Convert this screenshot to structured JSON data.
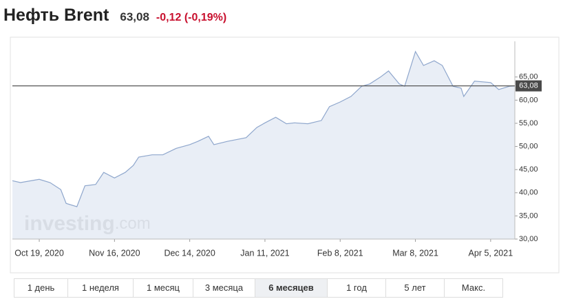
{
  "header": {
    "title": "Нефть Brent",
    "price": "63,08",
    "change": "-0,12 (-0,19%)"
  },
  "chart_data": {
    "type": "area",
    "color": "#8ea6cc",
    "fill": "#e5ebf4",
    "watermark": [
      "investing",
      ".com"
    ],
    "x": [
      "2020-10-09",
      "2020-10-12",
      "2020-10-19",
      "2020-10-23",
      "2020-10-27",
      "2020-10-29",
      "2020-11-02",
      "2020-11-05",
      "2020-11-09",
      "2020-11-12",
      "2020-11-16",
      "2020-11-20",
      "2020-11-23",
      "2020-11-25",
      "2020-11-30",
      "2020-12-04",
      "2020-12-09",
      "2020-12-14",
      "2020-12-17",
      "2020-12-21",
      "2020-12-23",
      "2020-12-28",
      "2021-01-04",
      "2021-01-08",
      "2021-01-11",
      "2021-01-15",
      "2021-01-19",
      "2021-01-22",
      "2021-01-27",
      "2021-02-01",
      "2021-02-04",
      "2021-02-08",
      "2021-02-12",
      "2021-02-16",
      "2021-02-19",
      "2021-02-23",
      "2021-02-26",
      "2021-03-02",
      "2021-03-04",
      "2021-03-08",
      "2021-03-11",
      "2021-03-15",
      "2021-03-18",
      "2021-03-22",
      "2021-03-25",
      "2021-03-26",
      "2021-03-30",
      "2021-04-05",
      "2021-04-08",
      "2021-04-12",
      "2021-04-14"
    ],
    "series": [
      {
        "values": [
          42.6,
          42.2,
          42.9,
          42.2,
          40.7,
          37.7,
          37.0,
          41.5,
          41.8,
          44.4,
          43.2,
          44.4,
          45.9,
          47.7,
          48.2,
          48.2,
          49.6,
          50.4,
          51.1,
          52.2,
          50.4,
          51.1,
          51.9,
          54.1,
          55.1,
          56.3,
          54.9,
          55.1,
          54.9,
          55.6,
          58.6,
          59.6,
          60.8,
          63.0,
          63.5,
          65.0,
          66.3,
          63.5,
          63.0,
          70.5,
          67.5,
          68.5,
          67.5,
          63.0,
          62.6,
          60.8,
          64.1,
          63.8,
          62.3,
          63.0,
          63.08
        ]
      }
    ],
    "current_value": {
      "value": 63.08,
      "label": "63,08"
    },
    "xlim": [
      "2020-10-09",
      "2021-04-14"
    ],
    "xticks": [
      {
        "value": "2020-10-19",
        "label": "Oct 19, 2020"
      },
      {
        "value": "2020-11-16",
        "label": "Nov 16, 2020"
      },
      {
        "value": "2020-12-14",
        "label": "Dec 14, 2020"
      },
      {
        "value": "2021-01-11",
        "label": "Jan 11, 2021"
      },
      {
        "value": "2021-02-08",
        "label": "Feb 8, 2021"
      },
      {
        "value": "2021-03-08",
        "label": "Mar 8, 2021"
      },
      {
        "value": "2021-04-05",
        "label": "Apr 5, 2021"
      }
    ],
    "ylim": [
      30,
      72.7
    ],
    "yticks": [
      {
        "value": 30,
        "label": "30,00"
      },
      {
        "value": 35,
        "label": "35,00"
      },
      {
        "value": 40,
        "label": "40,00"
      },
      {
        "value": 45,
        "label": "45,00"
      },
      {
        "value": 50,
        "label": "50,00"
      },
      {
        "value": 55,
        "label": "55,00"
      },
      {
        "value": 60,
        "label": "60,00"
      },
      {
        "value": 65,
        "label": "65,00"
      }
    ]
  },
  "periods": {
    "items": [
      "1 день",
      "1 неделя",
      "1 месяц",
      "3 месяца",
      "6 месяцев",
      "1 год",
      "5 лет",
      "Макс."
    ],
    "active": 4
  }
}
